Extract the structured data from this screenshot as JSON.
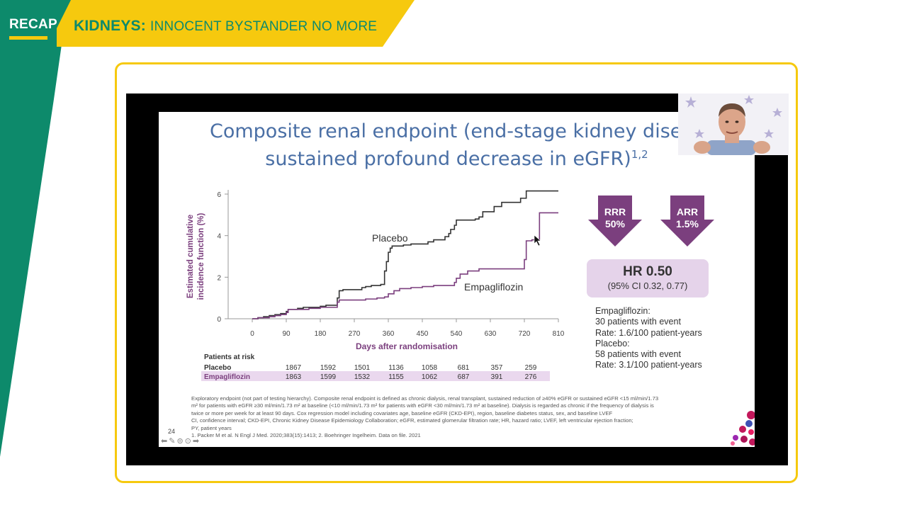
{
  "header": {
    "recap_label": "RECAP",
    "title_bold": "KIDNEYS:",
    "title_rest": "INNOCENT BYSTANDER NO MORE"
  },
  "colors": {
    "green": "#0d8a6b",
    "yellow": "#f6c90e",
    "purple": "#7b3f7e",
    "placebo_line": "#333333",
    "slide_title": "#4a6fa5",
    "hr_box": "#e5d3ea"
  },
  "slide": {
    "title_line1": "Composite renal endpoint (end-stage kidney diseas",
    "title_line2": "sustained profound decrease in eGFR)",
    "title_sup": "1,2",
    "arrows": [
      {
        "label": "RRR",
        "value": "50%"
      },
      {
        "label": "ARR",
        "value": "1.5%"
      }
    ],
    "hr": {
      "value": "HR 0.50",
      "ci": "(95% CI 0.32, 0.77)"
    },
    "stats": [
      "Empagliflozin:",
      "30 patients with event",
      "Rate: 1.6/100 patient-years",
      "Placebo:",
      "58 patients with event",
      "Rate: 3.1/100 patient-years"
    ],
    "footnotes": [
      "Exploratory endpoint (not part of testing hierarchy). Composite renal endpoint is defined as chronic dialysis, renal transplant, sustained reduction of ≥40% eGFR or sustained eGFR <15 ml/min/1.73",
      "m² for patients with eGFR ≥30 ml/min/1.73 m² at baseline (<10 ml/min/1.73 m² for patients with eGFR <30 ml/min/1.73 m² at baseline). Dialysis is regarded as chronic if the frequency of dialysis is",
      "twice or more per week for at least 90 days. Cox regression model including covariates age, baseline eGFR (CKD-EPI), region, baseline diabetes status, sex, and baseline LVEF",
      "CI, confidence interval; CKD-EPI, Chronic Kidney Disease Epidemiology Collaboration; eGFR, estimated glomerular filtration rate; HR, hazard ratio; LVEF, left ventricular ejection fraction;",
      "PY, patient years",
      "1. Packer M et al. N Engl J Med. 2020;383(15):1413; 2. Boehringer Ingelheim. Data on file. 2021"
    ],
    "slide_number": "24",
    "nav_icons": [
      "back-arrow-icon",
      "pen-icon",
      "grid-icon",
      "more-icon",
      "forward-arrow-icon"
    ]
  },
  "chart_data": {
    "type": "line",
    "xlabel": "Days after randomisation",
    "ylabel_line1": "Estimated cumulative",
    "ylabel_line2": "incidence function (%)",
    "xlim": [
      0,
      810
    ],
    "ylim": [
      0,
      6
    ],
    "x_ticks": [
      "0",
      "90",
      "180",
      "270",
      "360",
      "450",
      "540",
      "630",
      "720",
      "810"
    ],
    "y_ticks": [
      "0",
      "2",
      "4",
      "6"
    ],
    "series": [
      {
        "name": "Placebo",
        "color": "#333333",
        "x": [
          0,
          15,
          30,
          45,
          60,
          75,
          90,
          95,
          120,
          135,
          150,
          180,
          195,
          210,
          225,
          230,
          240,
          270,
          290,
          300,
          315,
          340,
          350,
          355,
          360,
          365,
          370,
          400,
          420,
          450,
          465,
          480,
          510,
          520,
          525,
          535,
          540,
          545,
          580,
          590,
          600,
          610,
          640,
          660,
          700,
          710,
          720,
          725,
          810
        ],
        "y": [
          0,
          0.05,
          0.1,
          0.15,
          0.2,
          0.25,
          0.35,
          0.45,
          0.5,
          0.55,
          0.55,
          0.6,
          0.65,
          0.65,
          1.0,
          1.35,
          1.4,
          1.4,
          1.5,
          1.55,
          1.6,
          1.65,
          2.3,
          2.75,
          3.2,
          3.4,
          3.5,
          3.55,
          3.6,
          3.6,
          3.7,
          3.8,
          3.95,
          4.1,
          4.3,
          4.5,
          4.75,
          4.75,
          4.75,
          4.8,
          4.9,
          5.15,
          5.4,
          5.6,
          5.6,
          5.8,
          5.8,
          6.15,
          6.15
        ]
      },
      {
        "name": "Empagliflozin",
        "color": "#7b3f7e",
        "x": [
          0,
          15,
          30,
          45,
          60,
          75,
          90,
          95,
          120,
          150,
          180,
          210,
          225,
          230,
          270,
          300,
          330,
          350,
          360,
          375,
          390,
          420,
          450,
          480,
          510,
          530,
          535,
          540,
          550,
          570,
          600,
          630,
          660,
          690,
          700,
          710,
          720,
          725,
          740,
          755,
          760,
          810
        ],
        "y": [
          0,
          0.05,
          0.05,
          0.1,
          0.15,
          0.2,
          0.3,
          0.45,
          0.45,
          0.5,
          0.55,
          0.55,
          0.8,
          0.9,
          0.9,
          0.95,
          1.0,
          1.05,
          1.2,
          1.35,
          1.45,
          1.5,
          1.55,
          1.6,
          1.6,
          1.6,
          1.75,
          1.95,
          2.15,
          2.3,
          2.4,
          2.4,
          2.4,
          2.4,
          2.4,
          2.4,
          2.85,
          3.75,
          3.8,
          3.8,
          5.1,
          5.1
        ]
      }
    ],
    "annotations": [
      "Placebo",
      "Empagliflozin"
    ],
    "risk_table": {
      "header": "Patients at risk",
      "rows": [
        {
          "label": "Placebo",
          "values": [
            "1867",
            "1592",
            "1501",
            "1136",
            "1058",
            "681",
            "357",
            "259"
          ]
        },
        {
          "label": "Empagliflozin",
          "values": [
            "1863",
            "1599",
            "1532",
            "1155",
            "1062",
            "687",
            "391",
            "276"
          ]
        }
      ]
    }
  }
}
